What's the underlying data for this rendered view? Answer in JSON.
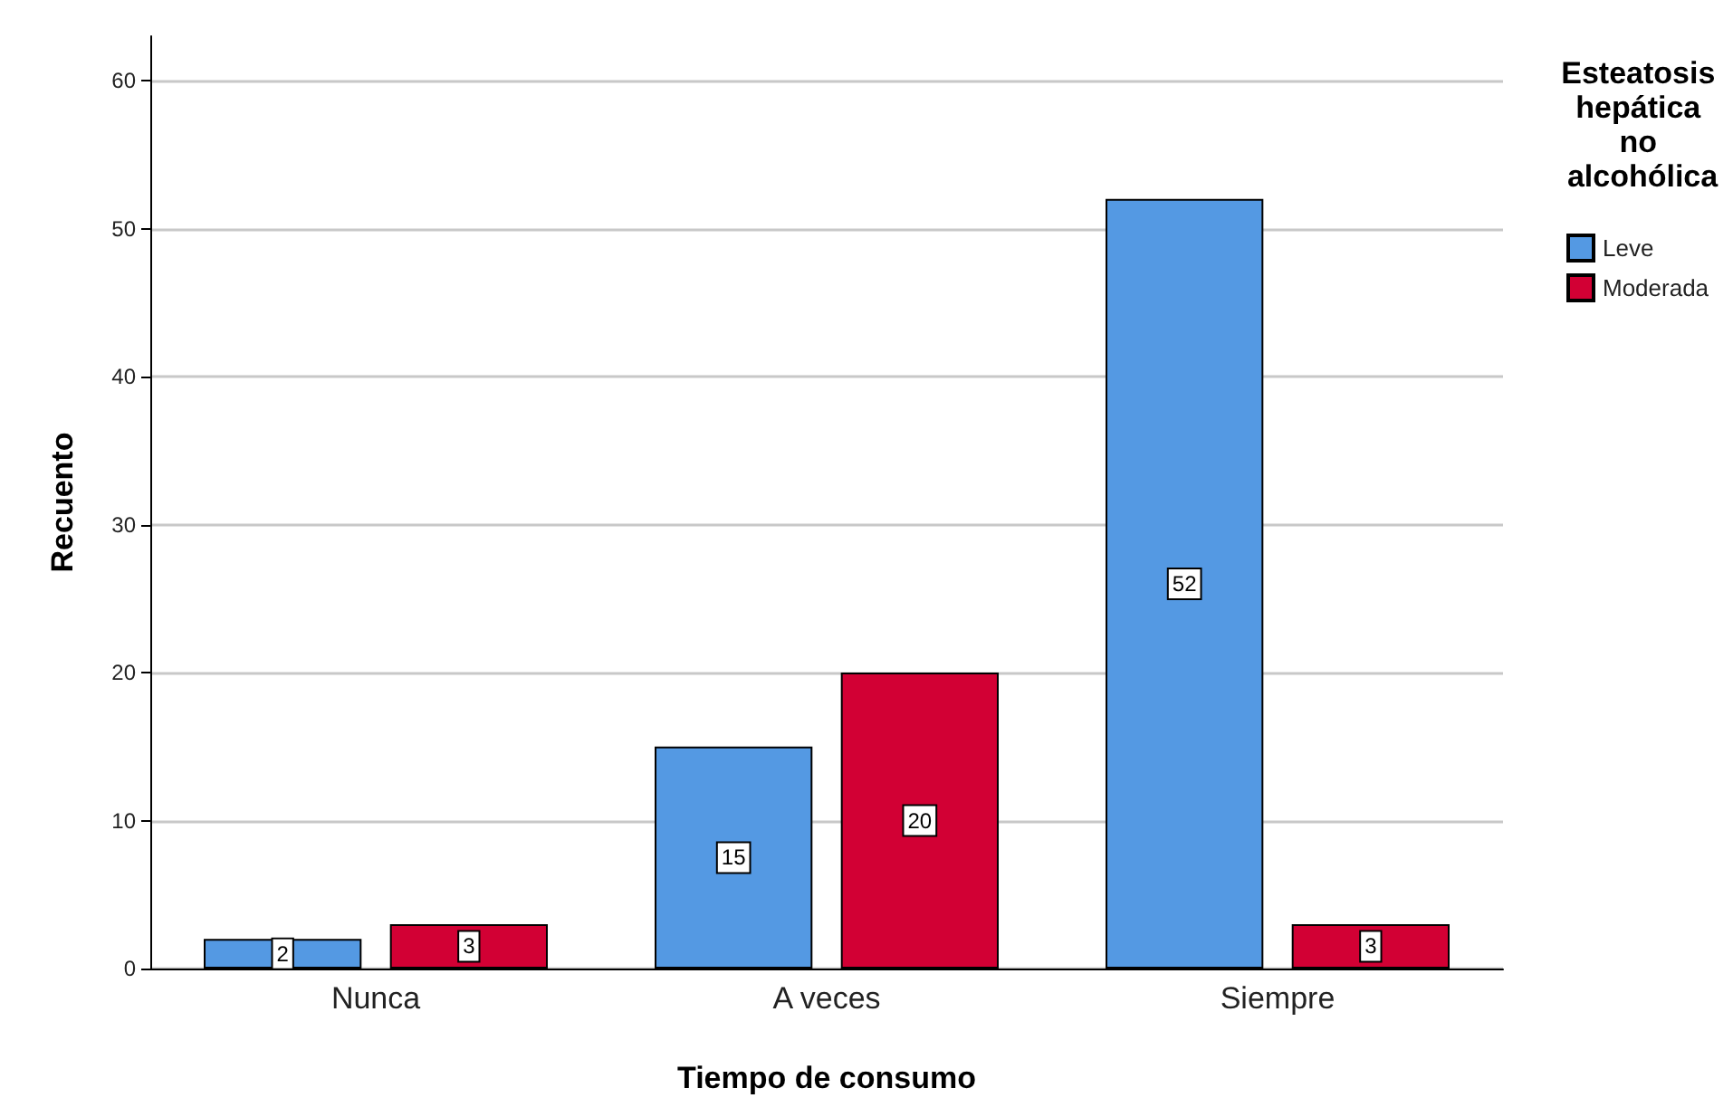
{
  "chart_data": {
    "type": "bar",
    "xlabel": "Tiempo de consumo",
    "ylabel": "Recuento",
    "legend_title": "Esteatosis hepática no alcohólica",
    "categories": [
      "Nunca",
      "A veces",
      "Siempre"
    ],
    "series": [
      {
        "name": "Leve",
        "color": "#5499e3",
        "values": [
          2,
          15,
          52
        ]
      },
      {
        "name": "Moderada",
        "color": "#d20034",
        "values": [
          3,
          20,
          3
        ]
      }
    ],
    "ylim": [
      0,
      63
    ],
    "yticks": [
      0,
      10,
      20,
      30,
      40,
      50,
      60
    ],
    "grid": "y",
    "legend": "right",
    "data_labels": true
  }
}
